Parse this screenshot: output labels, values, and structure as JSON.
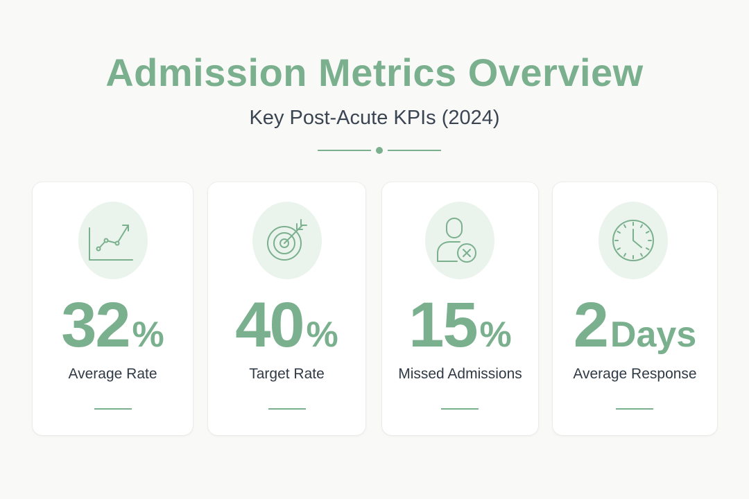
{
  "header": {
    "title": "Admission Metrics Overview",
    "subtitle": "Key Post-Acute KPIs (2024)"
  },
  "colors": {
    "accent": "#7bb08e",
    "icon_bg": "#eaf3ec",
    "text_dark": "#2f3a45",
    "background": "#f9f9f8",
    "card": "#ffffff"
  },
  "cards": [
    {
      "icon": "line-chart-icon",
      "value": "32",
      "unit": "%",
      "label": "Average Rate"
    },
    {
      "icon": "target-icon",
      "value": "40",
      "unit": "%",
      "label": "Target Rate"
    },
    {
      "icon": "user-x-icon",
      "value": "15",
      "unit": "%",
      "label": "Missed Admissions"
    },
    {
      "icon": "clock-icon",
      "value": "2",
      "unit": "Days",
      "label": "Average Response"
    }
  ]
}
